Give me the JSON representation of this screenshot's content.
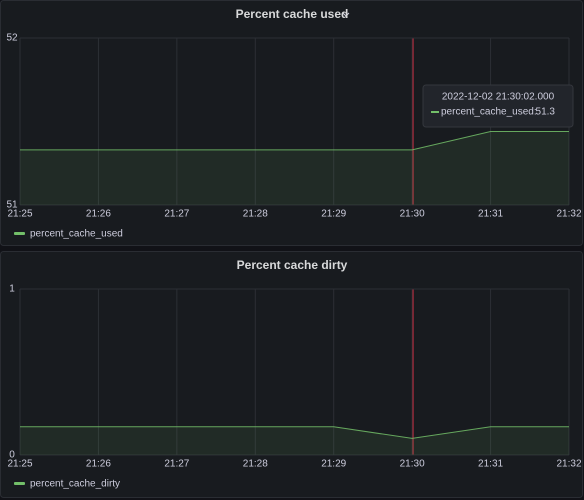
{
  "chart_data": [
    {
      "type": "line",
      "title": "Percent cache used",
      "categories": [
        "21:25",
        "21:26",
        "21:27",
        "21:28",
        "21:29",
        "21:30",
        "21:31",
        "21:32"
      ],
      "series": [
        {
          "name": "percent_cache_used",
          "color": "#73bf69",
          "values": [
            51.33,
            51.33,
            51.33,
            51.33,
            51.33,
            51.33,
            51.44,
            51.44
          ]
        }
      ],
      "ylim": [
        51,
        52
      ],
      "yticks": [
        51,
        52
      ],
      "grid": true,
      "tooltip": {
        "time": "2022-12-02 21:30:02.000",
        "label": "percent_cache_used:",
        "value": 51.3
      }
    },
    {
      "type": "line",
      "title": "Percent cache dirty",
      "categories": [
        "21:25",
        "21:26",
        "21:27",
        "21:28",
        "21:29",
        "21:30",
        "21:31",
        "21:32"
      ],
      "series": [
        {
          "name": "percent_cache_dirty",
          "color": "#73bf69",
          "values": [
            0.17,
            0.17,
            0.17,
            0.17,
            0.17,
            0.1,
            0.17,
            0.17
          ]
        }
      ],
      "ylim": [
        0,
        1
      ],
      "yticks": [
        0,
        1
      ],
      "grid": true
    }
  ]
}
